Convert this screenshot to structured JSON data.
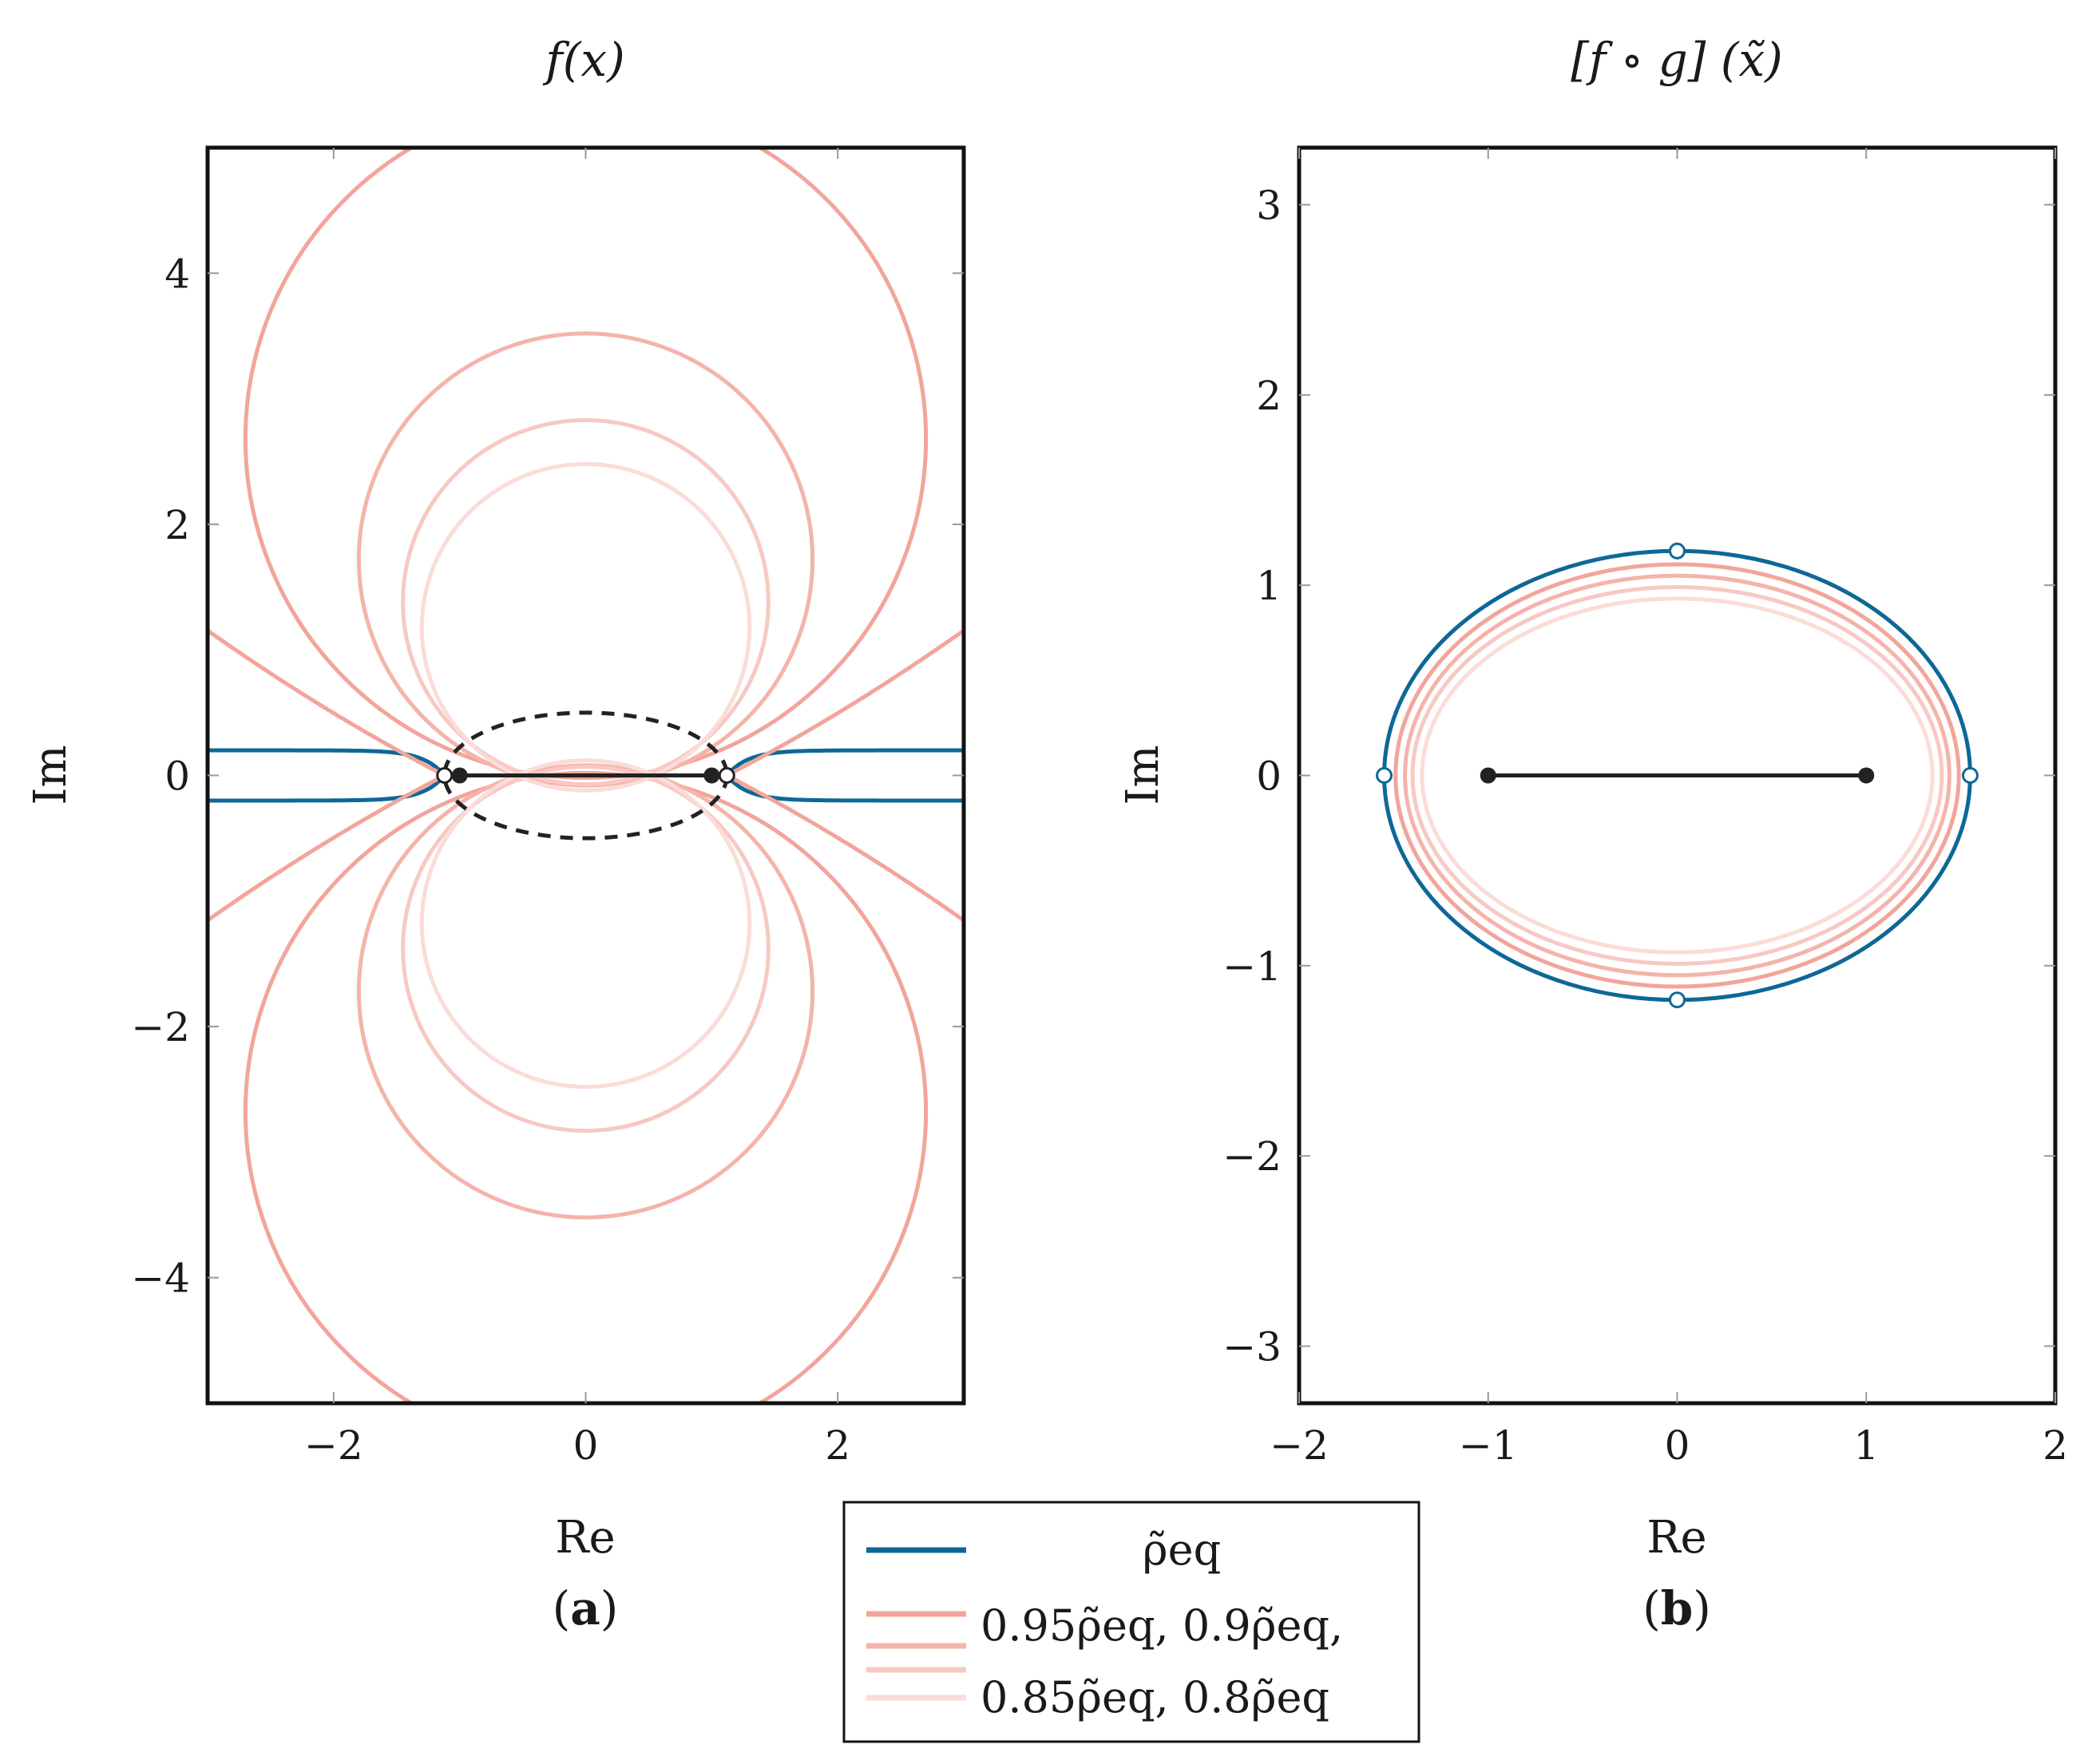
{
  "colors": {
    "blue": "#0e6896",
    "red_95": "#f2a59b",
    "red_90": "#f4b4ab",
    "red_85": "#f7c9c2",
    "red_80": "#fadcd8",
    "black": "#222222"
  },
  "chart_data": [
    {
      "type": "line",
      "panel": "a",
      "title": "f(x)",
      "subcaption": "(a)",
      "xlabel": "Re",
      "ylabel": "Im",
      "xlim": [
        -3,
        3
      ],
      "ylim": [
        -5,
        5
      ],
      "xticks": [
        -2,
        0,
        2
      ],
      "yticks": [
        -4,
        -2,
        0,
        2,
        4
      ],
      "xtick_labels": [
        "−2",
        "0",
        "2"
      ],
      "ytick_labels": [
        "−4",
        "−2",
        "0",
        "2",
        "4"
      ],
      "grid": false,
      "segment": {
        "x": [
          -1,
          1
        ],
        "y": [
          0,
          0
        ]
      },
      "endpoints_filled": [
        [
          -1,
          0
        ],
        [
          1,
          0
        ]
      ],
      "endpoints_open": [
        [
          -1.12,
          0
        ],
        [
          1.12,
          0
        ]
      ],
      "dashed_ellipse": {
        "cx": 0,
        "cy": 0,
        "rx": 1.12,
        "ry": 0.5
      },
      "series": [
        {
          "name": "ρ̃_eq",
          "branch_height": 0.2
        },
        {
          "name": "0.95ρ̃_eq",
          "circle_center_y": 2.68,
          "circle_radius": 2.7
        },
        {
          "name": "0.9ρ̃_eq",
          "circle_center_y": 1.72,
          "circle_radius": 1.8
        },
        {
          "name": "0.85ρ̃_eq",
          "circle_center_y": 1.38,
          "circle_radius": 1.45
        },
        {
          "name": "0.8ρ̃_eq",
          "circle_center_y": 1.18,
          "circle_radius": 1.3
        }
      ]
    },
    {
      "type": "line",
      "panel": "b",
      "title": "[f ∘ g] (x̃)",
      "subcaption": "(b)",
      "xlabel": "Re",
      "ylabel": "Im",
      "xlim": [
        -2,
        2
      ],
      "ylim": [
        -3.3,
        3.3
      ],
      "xticks": [
        -2,
        -1,
        0,
        1,
        2
      ],
      "yticks": [
        -3,
        -2,
        -1,
        0,
        1,
        2,
        3
      ],
      "xtick_labels": [
        "−2",
        "−1",
        "0",
        "1",
        "2"
      ],
      "ytick_labels": [
        "−3",
        "−2",
        "−1",
        "0",
        "1",
        "2",
        "3"
      ],
      "grid": false,
      "segment": {
        "x": [
          -1,
          1
        ],
        "y": [
          0,
          0
        ]
      },
      "series": [
        {
          "name": "ρ̃_eq",
          "ellipse_rx": 1.55,
          "ellipse_ry": 1.18
        },
        {
          "name": "0.95ρ̃_eq",
          "ellipse_rx": 1.49,
          "ellipse_ry": 1.11
        },
        {
          "name": "0.9ρ̃_eq",
          "ellipse_rx": 1.44,
          "ellipse_ry": 1.05
        },
        {
          "name": "0.85ρ̃_eq",
          "ellipse_rx": 1.4,
          "ellipse_ry": 0.99
        },
        {
          "name": "0.8ρ̃_eq",
          "ellipse_rx": 1.35,
          "ellipse_ry": 0.93
        }
      ],
      "open_markers": [
        [
          -1.55,
          0
        ],
        [
          1.55,
          0
        ],
        [
          0,
          1.18
        ],
        [
          0,
          -1.18
        ]
      ],
      "filled_markers": [
        [
          -1,
          0
        ],
        [
          1,
          0
        ]
      ]
    }
  ],
  "legend": {
    "placement": "bottom-center",
    "line1": "ρ̃eq",
    "line2": "0.95ρ̃eq, 0.9ρ̃eq,",
    "line3": "0.85ρ̃eq, 0.8ρ̃eq"
  },
  "labels": {
    "a_title": "f(x)",
    "b_title": "[f ∘ g] (x̃)",
    "a_xlabel": "Re",
    "b_xlabel": "Re",
    "a_ylabel": "Im",
    "b_ylabel": "Im",
    "a_sub_open": "(",
    "a_sub_letter": "a",
    "a_sub_close": ")",
    "b_sub_open": "(",
    "b_sub_letter": "b",
    "b_sub_close": ")"
  }
}
